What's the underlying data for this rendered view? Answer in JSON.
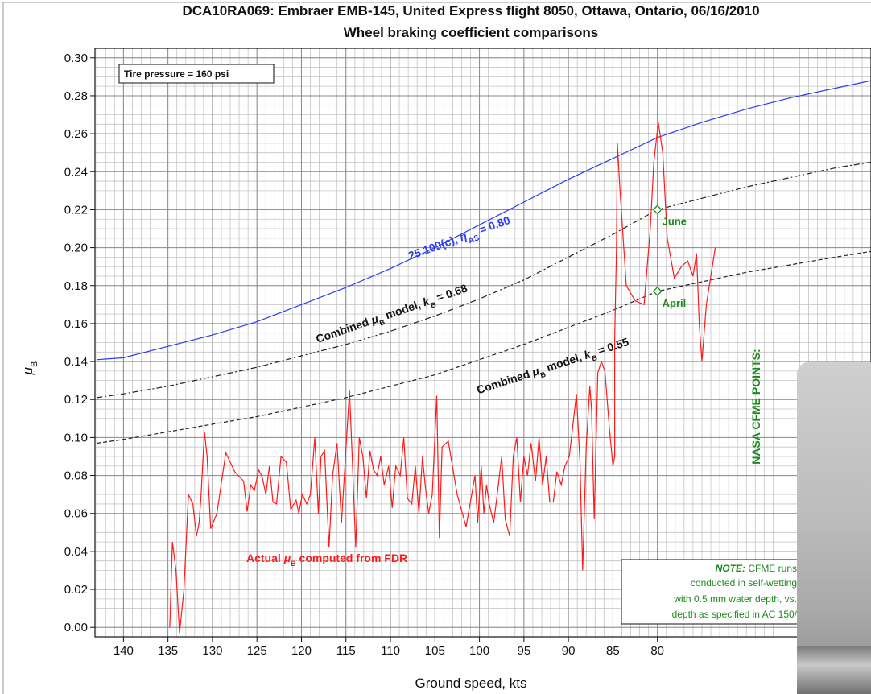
{
  "chart_data": {
    "type": "line",
    "title": [
      "DCA10RA069: Embraer EMB-145, United Express flight 8050, Ottawa, Ontario, 06/16/2010",
      "Wheel braking coefficient comparisons"
    ],
    "x_label": "Ground speed, kts",
    "y_label": [
      "μ",
      "B"
    ],
    "xlim": [
      143.2,
      56
    ],
    "ylim": [
      -0.005,
      0.305
    ],
    "xticks": [
      140,
      135,
      130,
      125,
      120,
      115,
      110,
      105,
      100,
      95,
      90,
      85,
      80
    ],
    "yticks": [
      {
        "value": 0.0,
        "label": "0.00"
      },
      0.02,
      0.04,
      0.06,
      0.08,
      {
        "value": 0.1,
        "label": "0.10"
      },
      0.12,
      0.14,
      0.16,
      0.18,
      {
        "value": 0.2,
        "label": "0.20"
      },
      0.22,
      0.24,
      0.26,
      0.28,
      {
        "value": 0.3,
        "label": "0.30"
      }
    ],
    "grid": true,
    "minor_divisions": {
      "x": 5,
      "y": 4
    },
    "box_note": "Tire pressure = 160 psi",
    "series": [
      {
        "label": [
          "25.109(c), ",
          "η",
          "AS",
          " = 0.80"
        ],
        "color": "#2b3cf2",
        "dash": "solid",
        "x": [
          143,
          140,
          135,
          130,
          125,
          120,
          115,
          110,
          105,
          100,
          95,
          90,
          85,
          80,
          75,
          70,
          65,
          60,
          56
        ],
        "values": [
          0.141,
          0.142,
          0.148,
          0.154,
          0.161,
          0.17,
          0.179,
          0.189,
          0.2,
          0.212,
          0.224,
          0.236,
          0.247,
          0.258,
          0.266,
          0.273,
          0.279,
          0.284,
          0.288
        ]
      },
      {
        "label": [
          "Combined ",
          "μ",
          "B",
          " model, ",
          "k",
          "B",
          " = 0.68"
        ],
        "color": "#222222",
        "dash": "dashdot",
        "x": [
          143,
          140,
          135,
          130,
          125,
          120,
          115,
          110,
          105,
          100,
          95,
          90,
          85,
          80,
          75,
          70,
          65,
          60,
          56
        ],
        "values": [
          0.121,
          0.123,
          0.127,
          0.132,
          0.137,
          0.143,
          0.149,
          0.156,
          0.164,
          0.173,
          0.183,
          0.195,
          0.207,
          0.22,
          0.226,
          0.232,
          0.237,
          0.242,
          0.245
        ]
      },
      {
        "label": [
          "Combined ",
          "μ",
          "B",
          " model, ",
          "k",
          "B",
          " = 0.55"
        ],
        "color": "#222222",
        "dash": "dashed",
        "x": [
          143,
          140,
          135,
          130,
          125,
          120,
          115,
          110,
          105,
          100,
          95,
          90,
          85,
          80,
          75,
          70,
          65,
          60,
          56
        ],
        "values": [
          0.097,
          0.099,
          0.103,
          0.107,
          0.111,
          0.116,
          0.121,
          0.127,
          0.133,
          0.141,
          0.149,
          0.158,
          0.167,
          0.177,
          0.182,
          0.187,
          0.191,
          0.195,
          0.198
        ]
      },
      {
        "label": [
          "Actual ",
          "μ",
          "B",
          " computed from FDR"
        ],
        "color": "#ff1a1a",
        "dash": "solid",
        "x": [
          134.8,
          134.5,
          134.1,
          133.7,
          133.2,
          132.7,
          132.2,
          131.8,
          131.5,
          131.3,
          130.9,
          130.6,
          130.2,
          129.5,
          128.5,
          127.5,
          126.5,
          126.1,
          125.7,
          125.3,
          124.8,
          124.4,
          124.0,
          123.6,
          123.2,
          122.8,
          122.3,
          121.7,
          121.2,
          120.6,
          120.3,
          119.9,
          119.4,
          119.0,
          118.5,
          118.1,
          117.8,
          117.4,
          116.9,
          116.5,
          116.0,
          115.5,
          114.6,
          114.3,
          113.9,
          113.5,
          113.1,
          112.7,
          112.3,
          111.9,
          111.5,
          111.1,
          110.7,
          110.2,
          109.8,
          109.4,
          108.9,
          108.5,
          108.1,
          107.6,
          107.2,
          106.8,
          106.4,
          106.1,
          105.7,
          105.3,
          104.8,
          104.5,
          104.2,
          103.5,
          102.5,
          101.5,
          100.5,
          100.2,
          99.8,
          99.5,
          99.2,
          98.9,
          98.4,
          98.0,
          97.5,
          97.1,
          96.6,
          96.2,
          95.8,
          95.4,
          95.0,
          94.6,
          94.2,
          93.7,
          93.3,
          92.9,
          92.5,
          92.1,
          91.7,
          91.3,
          90.8,
          90.4,
          89.9,
          89.1,
          88.7,
          88.4,
          88.0,
          87.6,
          87.4,
          87.1,
          86.7,
          86.3,
          85.9,
          85.4,
          85.0,
          84.8,
          84.8,
          84.6,
          84.5,
          84.2,
          83.5,
          82.5,
          81.5,
          80.8,
          80.4,
          79.9,
          79.4,
          78.9,
          78.1,
          77.3,
          76.6,
          76.0,
          75.6,
          75.3,
          75.0,
          74.5,
          73.5
        ],
        "values": [
          0.0,
          0.045,
          0.03,
          -0.003,
          0.02,
          0.07,
          0.065,
          0.048,
          0.055,
          0.068,
          0.103,
          0.09,
          0.052,
          0.06,
          0.092,
          0.082,
          0.077,
          0.061,
          0.075,
          0.072,
          0.083,
          0.079,
          0.07,
          0.085,
          0.066,
          0.065,
          0.09,
          0.087,
          0.062,
          0.067,
          0.06,
          0.07,
          0.065,
          0.07,
          0.1,
          0.06,
          0.09,
          0.093,
          0.042,
          0.08,
          0.097,
          0.055,
          0.125,
          0.09,
          0.042,
          0.1,
          0.09,
          0.068,
          0.093,
          0.083,
          0.08,
          0.09,
          0.075,
          0.085,
          0.063,
          0.085,
          0.08,
          0.1,
          0.068,
          0.065,
          0.085,
          0.06,
          0.09,
          0.075,
          0.06,
          0.07,
          0.122,
          0.047,
          0.095,
          0.098,
          0.07,
          0.053,
          0.08,
          0.055,
          0.085,
          0.06,
          0.075,
          0.065,
          0.055,
          0.07,
          0.09,
          0.057,
          0.048,
          0.09,
          0.1,
          0.066,
          0.09,
          0.08,
          0.097,
          0.077,
          0.1,
          0.075,
          0.09,
          0.066,
          0.066,
          0.082,
          0.075,
          0.085,
          0.09,
          0.123,
          0.087,
          0.03,
          0.095,
          0.127,
          0.115,
          0.057,
          0.134,
          0.14,
          0.135,
          0.105,
          0.085,
          0.09,
          0.152,
          0.2,
          0.255,
          0.23,
          0.18,
          0.172,
          0.17,
          0.21,
          0.245,
          0.266,
          0.25,
          0.205,
          0.184,
          0.19,
          0.193,
          0.185,
          0.197,
          0.16,
          0.14,
          0.17,
          0.2
        ]
      }
    ],
    "points_title": "NASA CFME POINTS:",
    "points_color": "#1e8a1e",
    "points": {
      "x": [
        80,
        80
      ],
      "values": [
        0.22,
        0.177
      ],
      "labels": [
        "June",
        "April"
      ]
    },
    "note_lead": "NOTE:",
    "note_lines": [
      " CFME runs",
      "conducted in  self-wetting",
      "with 0.5 mm water depth, vs.",
      "depth as specified in AC 150/"
    ]
  }
}
